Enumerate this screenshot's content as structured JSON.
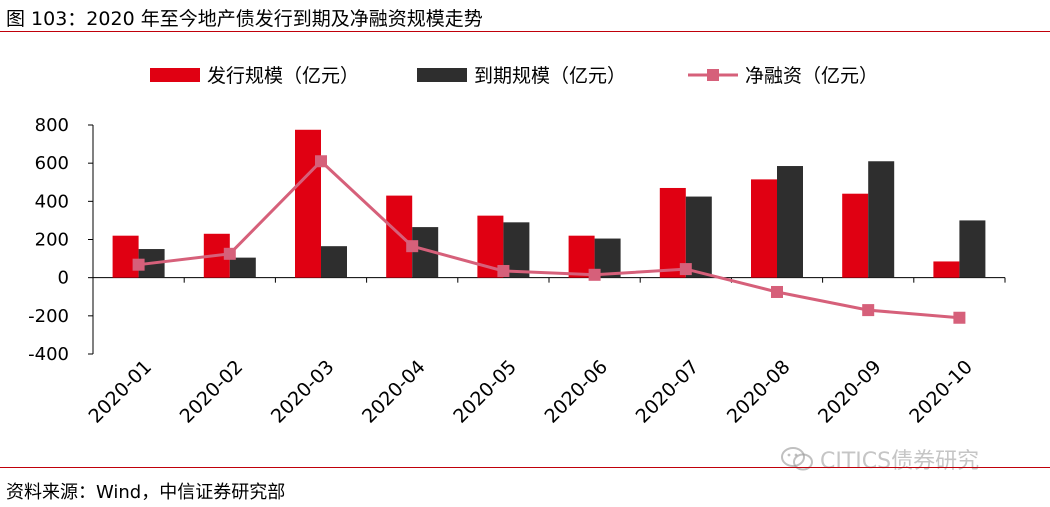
{
  "header": {
    "title": "图 103：2020 年至今地产债发行到期及净融资规模走势"
  },
  "footer": {
    "source": "资料来源：Wind，中信证券研究部"
  },
  "watermark": {
    "text": "CITICS债券研究",
    "icon": "wechat-icon"
  },
  "colors": {
    "issuance": "#e00012",
    "maturity": "#2e2e2e",
    "net": "#d6607a",
    "rule": "#c0000a"
  },
  "chart_data": {
    "type": "bar",
    "categories": [
      "2020-01",
      "2020-02",
      "2020-03",
      "2020-04",
      "2020-05",
      "2020-06",
      "2020-07",
      "2020-08",
      "2020-09",
      "2020-10"
    ],
    "series": [
      {
        "name": "发行规模（亿元）",
        "type": "bar",
        "values": [
          220,
          230,
          775,
          430,
          325,
          220,
          470,
          515,
          440,
          85
        ]
      },
      {
        "name": "到期规模（亿元）",
        "type": "bar",
        "values": [
          150,
          105,
          165,
          265,
          290,
          205,
          425,
          585,
          610,
          300
        ]
      },
      {
        "name": "净融资（亿元）",
        "type": "line",
        "values": [
          68,
          125,
          610,
          165,
          35,
          15,
          45,
          -75,
          -170,
          -210
        ]
      }
    ],
    "yticks": [
      "800",
      "600",
      "400",
      "200",
      "0",
      "-200",
      "-400"
    ],
    "ylim": [
      -400,
      800
    ],
    "grid": false,
    "legend": "top"
  }
}
